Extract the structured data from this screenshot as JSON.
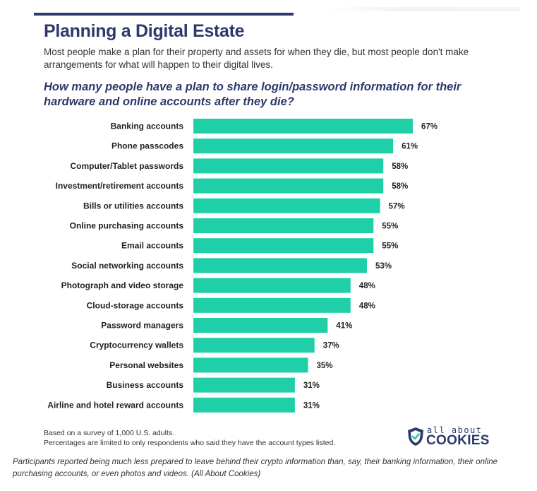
{
  "title": "Planning a Digital Estate",
  "subtitle": "Most people make a plan for their property and assets for when they die, but most people don't make arrangements for what will happen to their digital lives.",
  "chart_data": {
    "type": "bar",
    "orientation": "horizontal",
    "title": "How many people have a plan to share login/password information for their hardware and online accounts after they die?",
    "categories": [
      "Banking accounts",
      "Phone passcodes",
      "Computer/Tablet passwords",
      "Investment/retirement accounts",
      "Bills or utilities accounts",
      "Online purchasing accounts",
      "Email accounts",
      "Social networking accounts",
      "Photograph and video storage",
      "Cloud-storage accounts",
      "Password managers",
      "Cryptocurrency wallets",
      "Personal websites",
      "Business accounts",
      "Airline and hotel reward accounts"
    ],
    "values": [
      67,
      61,
      58,
      58,
      57,
      55,
      55,
      53,
      48,
      48,
      41,
      37,
      35,
      31,
      31
    ],
    "data_labels": [
      "67%",
      "61%",
      "58%",
      "58%",
      "57%",
      "55%",
      "55%",
      "53%",
      "48%",
      "48%",
      "41%",
      "37%",
      "35%",
      "31%",
      "31%"
    ],
    "xlim": [
      0,
      67
    ],
    "grid": false,
    "bar_color": "#1fcfa8"
  },
  "footnotes": [
    "Based on a survey of 1,000 U.S. adults.",
    "Percentages are limited to only respondents who said they have the account types listed."
  ],
  "logo": {
    "small": "all about",
    "big": "COOKIES"
  },
  "caption": "Participants reported being much less prepared to leave behind their crypto information than, say, their banking information, their online purchasing accounts, or even photos and videos. (All About Cookies)",
  "colors": {
    "navy": "#2b3a6b",
    "bar": "#1fcfa8"
  }
}
